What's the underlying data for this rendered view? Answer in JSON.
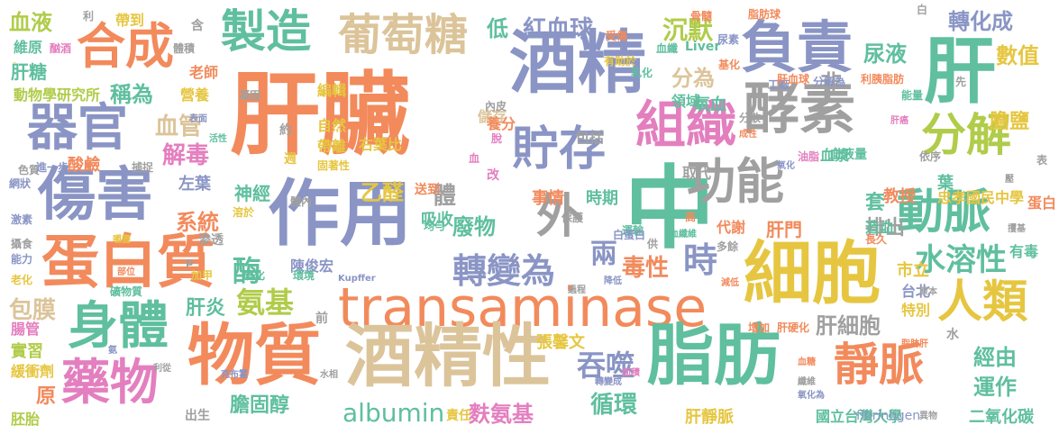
{
  "words": [
    {
      "text": "肝臟",
      "color": "#f28a5c"
    },
    {
      "text": "酒精",
      "color": "#8a95c5"
    },
    {
      "text": "作用",
      "color": "#8a95c5"
    },
    {
      "text": "transaminase",
      "color": "#f28a5c"
    },
    {
      "text": "中",
      "color": "#5fbf9e"
    },
    {
      "text": "脂肪",
      "color": "#5fbf9e"
    },
    {
      "text": "酒精性",
      "color": "#dcc49a"
    },
    {
      "text": "物質",
      "color": "#f28a5c"
    },
    {
      "text": "細胞",
      "color": "#e6c640"
    },
    {
      "text": "肝",
      "color": "#5fbf9e"
    },
    {
      "text": "酵素",
      "color": "#a0a0a0"
    },
    {
      "text": "傷害",
      "color": "#8a95c5"
    },
    {
      "text": "蛋白質",
      "color": "#f28a5c"
    },
    {
      "text": "負責",
      "color": "#8a95c5"
    },
    {
      "text": "功能",
      "color": "#a0a0a0"
    },
    {
      "text": "器官",
      "color": "#8a95c5"
    },
    {
      "text": "合成",
      "color": "#f28a5c"
    },
    {
      "text": "製造",
      "color": "#5fbf9e"
    },
    {
      "text": "葡萄糖",
      "color": "#dcc49a"
    },
    {
      "text": "貯存",
      "color": "#8a95c5"
    },
    {
      "text": "組織",
      "color": "#e37fbf"
    },
    {
      "text": "外",
      "color": "#a0a0a0"
    },
    {
      "text": "分解",
      "color": "#b0cc4a"
    },
    {
      "text": "動脈",
      "color": "#5fbf9e"
    },
    {
      "text": "人類",
      "color": "#e6c640"
    },
    {
      "text": "身體",
      "color": "#5fbf9e"
    },
    {
      "text": "藥物",
      "color": "#e37fbf"
    },
    {
      "text": "靜脈",
      "color": "#f28a5c"
    },
    {
      "text": "轉變為",
      "color": "#8a95c5"
    },
    {
      "text": "時",
      "color": "#8a95c5"
    },
    {
      "text": "水溶性",
      "color": "#5fbf9e"
    },
    {
      "text": "吞噬",
      "color": "#8a95c5"
    },
    {
      "text": "albumin",
      "color": "#5fbf9e"
    },
    {
      "text": "氨基",
      "color": "#b0cc4a"
    },
    {
      "text": "酶",
      "color": "#5fbf9e"
    },
    {
      "text": "血液",
      "color": "#b0cc4a"
    },
    {
      "text": "低",
      "color": "#5fbf9e"
    },
    {
      "text": "紅血球",
      "color": "#8a95c5"
    },
    {
      "text": "沉默",
      "color": "#b0cc4a"
    },
    {
      "text": "轉化成",
      "color": "#8a95c5"
    },
    {
      "text": "尿液",
      "color": "#5fbf9e"
    },
    {
      "text": "數值",
      "color": "#e6c640"
    },
    {
      "text": "膽鹽",
      "color": "#e6c640"
    },
    {
      "text": "分為",
      "color": "#dcc49a"
    },
    {
      "text": "非",
      "color": "#a0a0a0"
    },
    {
      "text": "稱為",
      "color": "#5fbf9e"
    },
    {
      "text": "血管",
      "color": "#dcc49a"
    },
    {
      "text": "解毒",
      "color": "#e37fbf"
    },
    {
      "text": "肝糖",
      "color": "#5fbf9e"
    },
    {
      "text": "動物學研究所",
      "color": "#b0cc4a"
    },
    {
      "text": "乙醛",
      "color": "#e6c640"
    },
    {
      "text": "神經",
      "color": "#5fbf9e"
    },
    {
      "text": "系統",
      "color": "#f28a5c"
    },
    {
      "text": "套",
      "color": "#5fbf9e"
    },
    {
      "text": "教授",
      "color": "#f28a5c"
    },
    {
      "text": "忠孝國民中學",
      "color": "#e6c640"
    },
    {
      "text": "排出",
      "color": "#a0a0a0"
    },
    {
      "text": "肝門",
      "color": "#f28a5c"
    },
    {
      "text": "廢物",
      "color": "#5fbf9e"
    },
    {
      "text": "兩",
      "color": "#8a95c5"
    },
    {
      "text": "毒性",
      "color": "#f28a5c"
    },
    {
      "text": "體",
      "color": "#a0a0a0"
    },
    {
      "text": "事情",
      "color": "#f28a5c"
    },
    {
      "text": "時期",
      "color": "#5fbf9e"
    },
    {
      "text": "吸收",
      "color": "#5fbf9e"
    },
    {
      "text": "循環",
      "color": "#5fbf9e"
    },
    {
      "text": "麩氨基",
      "color": "#e37fbf"
    },
    {
      "text": "膽固醇",
      "color": "#5fbf9e"
    },
    {
      "text": "肝炎",
      "color": "#5fbf9e"
    },
    {
      "text": "包膜",
      "color": "#dcc49a"
    },
    {
      "text": "肝細胞",
      "color": "#a0a0a0"
    },
    {
      "text": "經由",
      "color": "#5fbf9e"
    },
    {
      "text": "運作",
      "color": "#5fbf9e"
    },
    {
      "text": "國立台灣大學",
      "color": "#5fbf9e"
    },
    {
      "text": "二氧化碳",
      "color": "#5fbf9e"
    },
    {
      "text": "肝靜脈",
      "color": "#e6c640"
    },
    {
      "text": "張馨文",
      "color": "#e6c640"
    },
    {
      "text": "fibrinogen",
      "color": "#8a95c5"
    },
    {
      "text": "原",
      "color": "#f28a5c"
    },
    {
      "text": "市立",
      "color": "#e6c640"
    },
    {
      "text": "台北",
      "color": "#8a95c5"
    },
    {
      "text": "特別",
      "color": "#e6c640"
    },
    {
      "text": "陳俊宏",
      "color": "#8a95c5"
    },
    {
      "text": "左葉",
      "color": "#8a95c5"
    },
    {
      "text": "葉",
      "color": "#5fbf9e"
    },
    {
      "text": "右葉比",
      "color": "#e6c640"
    },
    {
      "text": "氧血",
      "color": "#5fbf9e"
    },
    {
      "text": "血漿",
      "color": "#5fbf9e"
    },
    {
      "text": "儲存",
      "color": "#dcc49a"
    },
    {
      "text": "編輯",
      "color": "#e6c640"
    },
    {
      "text": "自然",
      "color": "#e6c640"
    },
    {
      "text": "帶離",
      "color": "#e6c640"
    },
    {
      "text": "營養",
      "color": "#e6c640"
    },
    {
      "text": "老師",
      "color": "#f28a5c"
    },
    {
      "text": "酸鹼",
      "color": "#f28a5c"
    },
    {
      "text": "維原",
      "color": "#5fbf9e"
    },
    {
      "text": "帶到",
      "color": "#e6c640"
    },
    {
      "text": "輸送到",
      "color": "#e6c640"
    },
    {
      "text": "養分",
      "color": "#f28a5c"
    },
    {
      "text": "包括",
      "color": "#a0a0a0"
    },
    {
      "text": "實習",
      "color": "#b0cc4a"
    },
    {
      "text": "腸管",
      "color": "#e37fbf"
    },
    {
      "text": "緩衝劑",
      "color": "#e6c640"
    },
    {
      "text": "胚胎",
      "color": "#b0cc4a"
    },
    {
      "text": "血液量",
      "color": "#5fbf9e"
    },
    {
      "text": "造血",
      "color": "#5fbf9e"
    },
    {
      "text": "代謝",
      "color": "#f28a5c"
    },
    {
      "text": "蛋白",
      "color": "#f28a5c"
    },
    {
      "text": "有毒",
      "color": "#5fbf9e"
    },
    {
      "text": "領域",
      "color": "#5fbf9e"
    },
    {
      "text": "血纖",
      "color": "#5fbf9e"
    },
    {
      "text": "Liver",
      "color": "#5fbf9e"
    },
    {
      "text": "送到",
      "color": "#f28a5c"
    },
    {
      "text": "運輸",
      "color": "#5fbf9e"
    },
    {
      "text": "取代",
      "color": "#a0a0a0"
    },
    {
      "text": "出生",
      "color": "#a0a0a0"
    },
    {
      "text": "前",
      "color": "#a0a0a0"
    },
    {
      "text": "責任",
      "color": "#e6c640"
    },
    {
      "text": "水",
      "color": "#a0a0a0"
    },
    {
      "text": "白",
      "color": "#a0a0a0"
    },
    {
      "text": "利",
      "color": "#a0a0a0"
    },
    {
      "text": "含",
      "color": "#a0a0a0"
    },
    {
      "text": "肝硬化",
      "color": "#f28a5c"
    },
    {
      "text": "增加",
      "color": "#f28a5c"
    },
    {
      "text": "骨髓",
      "color": "#f28a5c"
    },
    {
      "text": "脂肪球",
      "color": "#f28a5c"
    },
    {
      "text": "受傷",
      "color": "#f28a5c"
    },
    {
      "text": "尿素",
      "color": "#8a95c5"
    },
    {
      "text": "乳化",
      "color": "#5fbf9e"
    },
    {
      "text": "工廠",
      "color": "#8a95c5"
    },
    {
      "text": "肝血球",
      "color": "#f28a5c"
    },
    {
      "text": "分解為",
      "color": "#8a95c5"
    },
    {
      "text": "利胰脂肪",
      "color": "#f28a5c"
    },
    {
      "text": "基化",
      "color": "#f28a5c"
    },
    {
      "text": "能量",
      "color": "#5fbf9e"
    },
    {
      "text": "先",
      "color": "#a0a0a0"
    },
    {
      "text": "酗酒",
      "color": "#e37fbf"
    },
    {
      "text": "體積",
      "color": "#a0a0a0"
    },
    {
      "text": "有助於",
      "color": "#e6c640"
    },
    {
      "text": "凝固",
      "color": "#a0a0a0"
    },
    {
      "text": "內皮",
      "color": "#a0a0a0"
    },
    {
      "text": "約",
      "color": "#a0a0a0"
    },
    {
      "text": "表面",
      "color": "#8a95c5"
    },
    {
      "text": "活性",
      "color": "#5fbf9e"
    },
    {
      "text": "週",
      "color": "#e6c640"
    },
    {
      "text": "固著性",
      "color": "#e6c640"
    },
    {
      "text": "脫",
      "color": "#e37fbf"
    },
    {
      "text": "血",
      "color": "#e37fbf"
    },
    {
      "text": "改",
      "color": "#e37fbf"
    },
    {
      "text": "分散",
      "color": "#a0a0a0"
    },
    {
      "text": "成性",
      "color": "#f28a5c"
    },
    {
      "text": "肝癌",
      "color": "#e37fbf"
    },
    {
      "text": "依序",
      "color": "#a0a0a0"
    },
    {
      "text": "氧化",
      "color": "#8a95c5"
    },
    {
      "text": "油脂",
      "color": "#e37fbf"
    },
    {
      "text": "色質",
      "color": "#a0a0a0"
    },
    {
      "text": "網狀",
      "color": "#8a95c5"
    },
    {
      "text": "進一步",
      "color": "#8a95c5"
    },
    {
      "text": "捕捉",
      "color": "#a0a0a0"
    },
    {
      "text": "表",
      "color": "#a0a0a0"
    },
    {
      "text": "溶於",
      "color": "#e6c640"
    },
    {
      "text": "體內",
      "color": "#a0a0a0"
    },
    {
      "text": "均勻",
      "color": "#5fbf9e"
    },
    {
      "text": "保護",
      "color": "#a0a0a0"
    },
    {
      "text": "高",
      "color": "#f28a5c"
    },
    {
      "text": "白蛋白",
      "color": "#8a95c5"
    },
    {
      "text": "供",
      "color": "#a0a0a0"
    },
    {
      "text": "血纖維",
      "color": "#5fbf9e"
    },
    {
      "text": "多餘",
      "color": "#a0a0a0"
    },
    {
      "text": "壓",
      "color": "#a0a0a0"
    },
    {
      "text": "長久",
      "color": "#f28a5c"
    },
    {
      "text": "攫基",
      "color": "#a0a0a0"
    },
    {
      "text": "激素",
      "color": "#8a95c5"
    },
    {
      "text": "攝食",
      "color": "#a0a0a0"
    },
    {
      "text": "能力",
      "color": "#8a95c5"
    },
    {
      "text": "老化",
      "color": "#e6c640"
    },
    {
      "text": "嚼盡",
      "color": "#e6c640"
    },
    {
      "text": "部位",
      "color": "#f28a5c"
    },
    {
      "text": "渗透",
      "color": "#a0a0a0"
    },
    {
      "text": "p",
      "color": "#a0a0a0"
    },
    {
      "text": "加甲",
      "color": "#e6c640"
    },
    {
      "text": "礦物質",
      "color": "#5fbf9e"
    },
    {
      "text": "硫化",
      "color": "#5fbf9e"
    },
    {
      "text": "環境",
      "color": "#5fbf9e"
    },
    {
      "text": "Kupffer",
      "color": "#8a95c5"
    },
    {
      "text": "過程",
      "color": "#a0a0a0"
    },
    {
      "text": "降低",
      "color": "#8a95c5"
    },
    {
      "text": "減低",
      "color": "#f28a5c"
    },
    {
      "text": "原本",
      "color": "#a0a0a0"
    },
    {
      "text": "克布霍",
      "color": "#8a95c5"
    },
    {
      "text": "氨",
      "color": "#8a95c5"
    },
    {
      "text": "利從",
      "color": "#a0a0a0"
    },
    {
      "text": "水相",
      "color": "#a0a0a0"
    },
    {
      "text": "面積",
      "color": "#e37fbf"
    },
    {
      "text": "轉變成",
      "color": "#8a95c5"
    },
    {
      "text": "血糖",
      "color": "#f28a5c"
    },
    {
      "text": "脂肪肝",
      "color": "#f28a5c"
    },
    {
      "text": "纖維",
      "color": "#a0a0a0"
    },
    {
      "text": "氧化為",
      "color": "#8a95c5"
    },
    {
      "text": "異物",
      "color": "#a0a0a0"
    }
  ]
}
